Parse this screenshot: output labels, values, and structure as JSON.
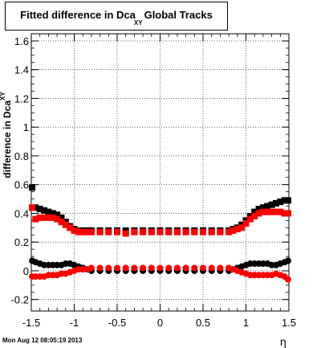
{
  "chart_data": {
    "type": "scatter",
    "title": "Fitted difference in Dca",
    "title_subscript": "XY",
    "title_suffix": "Global Tracks",
    "xlabel": "η",
    "ylabel": "difference in Dca",
    "ylabel_subscript": "XY",
    "xlim": [
      -1.5,
      1.5
    ],
    "ylim": [
      -0.28,
      1.65
    ],
    "x_ticks": [
      -1.5,
      -1,
      -0.5,
      0,
      0.5,
      1,
      1.5
    ],
    "x_tick_labels": [
      "-1.5",
      "-1",
      "-0.5",
      "0",
      "0.5",
      "1",
      "1.5"
    ],
    "y_ticks": [
      -0.2,
      0,
      0.2,
      0.4,
      0.6,
      0.8,
      1,
      1.2,
      1.4,
      1.6
    ],
    "y_tick_labels": [
      "-0.2",
      "0",
      "0.2",
      "0.4",
      "0.6",
      "0.8",
      "1",
      "1.2",
      "1.4",
      "1.6"
    ],
    "grid": true,
    "series": [
      {
        "color": "#000000",
        "marker": "square",
        "x": [
          -1.49,
          -1.45,
          -1.4,
          -1.35,
          -1.3,
          -1.25,
          -1.2,
          -1.15,
          -1.1,
          -1.05,
          -1.0,
          -0.95,
          -0.9,
          -0.85,
          -0.8,
          -0.7,
          -0.6,
          -0.5,
          -0.4,
          -0.3,
          -0.2,
          -0.1,
          0.0,
          0.1,
          0.2,
          0.3,
          0.4,
          0.5,
          0.6,
          0.7,
          0.8,
          0.85,
          0.9,
          0.95,
          1.0,
          1.05,
          1.1,
          1.15,
          1.2,
          1.25,
          1.3,
          1.35,
          1.4,
          1.45,
          1.49
        ],
        "y": [
          0.58,
          0.44,
          0.43,
          0.42,
          0.41,
          0.4,
          0.39,
          0.37,
          0.34,
          0.31,
          0.29,
          0.28,
          0.28,
          0.28,
          0.28,
          0.28,
          0.28,
          0.28,
          0.28,
          0.28,
          0.28,
          0.28,
          0.28,
          0.28,
          0.28,
          0.28,
          0.28,
          0.28,
          0.28,
          0.28,
          0.28,
          0.29,
          0.3,
          0.32,
          0.35,
          0.38,
          0.41,
          0.43,
          0.44,
          0.45,
          0.46,
          0.47,
          0.48,
          0.49,
          0.49
        ]
      },
      {
        "color": "#ff0000",
        "marker": "square",
        "x": [
          -1.49,
          -1.45,
          -1.4,
          -1.35,
          -1.3,
          -1.25,
          -1.2,
          -1.15,
          -1.1,
          -1.05,
          -1.0,
          -0.95,
          -0.9,
          -0.85,
          -0.8,
          -0.7,
          -0.6,
          -0.5,
          -0.4,
          -0.3,
          -0.2,
          -0.1,
          0.0,
          0.1,
          0.2,
          0.3,
          0.4,
          0.5,
          0.6,
          0.7,
          0.8,
          0.85,
          0.9,
          0.95,
          1.0,
          1.05,
          1.1,
          1.15,
          1.2,
          1.25,
          1.3,
          1.35,
          1.4,
          1.45,
          1.49
        ],
        "y": [
          0.44,
          0.36,
          0.37,
          0.37,
          0.37,
          0.37,
          0.36,
          0.34,
          0.32,
          0.3,
          0.28,
          0.27,
          0.27,
          0.27,
          0.27,
          0.27,
          0.27,
          0.27,
          0.26,
          0.27,
          0.27,
          0.27,
          0.27,
          0.27,
          0.27,
          0.27,
          0.27,
          0.27,
          0.27,
          0.27,
          0.27,
          0.28,
          0.29,
          0.3,
          0.33,
          0.36,
          0.38,
          0.4,
          0.41,
          0.41,
          0.41,
          0.41,
          0.41,
          0.4,
          0.4
        ]
      },
      {
        "color": "#000000",
        "marker": "circle",
        "x": [
          -1.49,
          -1.45,
          -1.4,
          -1.35,
          -1.3,
          -1.25,
          -1.2,
          -1.15,
          -1.1,
          -1.05,
          -1.0,
          -0.95,
          -0.9,
          -0.85,
          -0.8,
          -0.7,
          -0.6,
          -0.5,
          -0.4,
          -0.3,
          -0.2,
          -0.1,
          0.0,
          0.1,
          0.2,
          0.3,
          0.4,
          0.5,
          0.6,
          0.7,
          0.8,
          0.85,
          0.9,
          0.95,
          1.0,
          1.05,
          1.1,
          1.15,
          1.2,
          1.25,
          1.3,
          1.35,
          1.4,
          1.45,
          1.49
        ],
        "y": [
          0.07,
          0.06,
          0.05,
          0.04,
          0.04,
          0.04,
          0.04,
          0.04,
          0.05,
          0.05,
          0.04,
          0.03,
          0.02,
          0.01,
          0.0,
          0.0,
          0.0,
          0.0,
          0.0,
          0.0,
          0.0,
          0.0,
          0.0,
          0.0,
          0.0,
          0.0,
          0.0,
          0.0,
          0.0,
          0.0,
          0.0,
          0.01,
          0.02,
          0.03,
          0.04,
          0.05,
          0.05,
          0.05,
          0.05,
          0.05,
          0.04,
          0.04,
          0.05,
          0.06,
          0.07
        ]
      },
      {
        "color": "#ff0000",
        "marker": "circle",
        "x": [
          -1.49,
          -1.45,
          -1.4,
          -1.35,
          -1.3,
          -1.25,
          -1.2,
          -1.15,
          -1.1,
          -1.05,
          -1.0,
          -0.95,
          -0.9,
          -0.85,
          -0.8,
          -0.7,
          -0.6,
          -0.5,
          -0.4,
          -0.3,
          -0.2,
          -0.1,
          0.0,
          0.1,
          0.2,
          0.3,
          0.4,
          0.5,
          0.6,
          0.7,
          0.8,
          0.85,
          0.9,
          0.95,
          1.0,
          1.05,
          1.1,
          1.15,
          1.2,
          1.25,
          1.3,
          1.35,
          1.4,
          1.45,
          1.49
        ],
        "y": [
          -0.04,
          -0.04,
          -0.04,
          -0.04,
          -0.03,
          -0.03,
          -0.03,
          -0.02,
          -0.02,
          -0.01,
          0.0,
          0.01,
          0.01,
          0.01,
          0.02,
          0.02,
          0.02,
          0.02,
          0.02,
          0.02,
          0.02,
          0.02,
          0.02,
          0.02,
          0.02,
          0.02,
          0.02,
          0.02,
          0.02,
          0.02,
          0.02,
          0.01,
          0.0,
          -0.01,
          -0.02,
          -0.03,
          -0.03,
          -0.03,
          -0.03,
          -0.03,
          -0.03,
          -0.02,
          -0.03,
          -0.04,
          -0.06
        ]
      }
    ]
  },
  "footer_timestamp": "Mon Aug 12 08:05:19 2013"
}
